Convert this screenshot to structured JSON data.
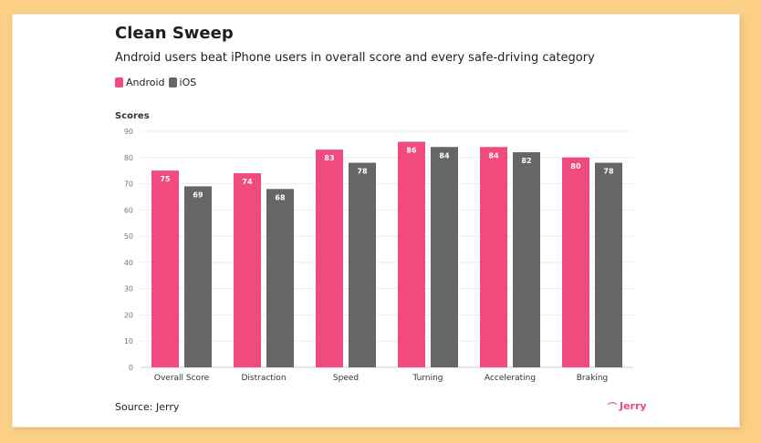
{
  "chart_data": {
    "type": "bar",
    "title": "Clean Sweep",
    "subtitle": "Android users beat iPhone users in overall score and every safe-driving category",
    "ylabel": "Scores",
    "xlabel": "",
    "ylim": [
      0,
      90
    ],
    "yticks": [
      0,
      10,
      20,
      30,
      40,
      50,
      60,
      70,
      80,
      90
    ],
    "categories": [
      "Overall Score",
      "Distraction",
      "Speed",
      "Turning",
      "Accelerating",
      "Braking"
    ],
    "series": [
      {
        "name": "Android",
        "color": "#f04a7e",
        "values": [
          75,
          74,
          83,
          86,
          84,
          80
        ]
      },
      {
        "name": "iOS",
        "color": "#666666",
        "values": [
          69,
          68,
          78,
          84,
          82,
          78
        ]
      }
    ],
    "legend": "top-left",
    "grid": true
  },
  "footer": {
    "source": "Source: Jerry",
    "brand": "Jerry",
    "brand_icon": "jerry-logo-icon"
  }
}
